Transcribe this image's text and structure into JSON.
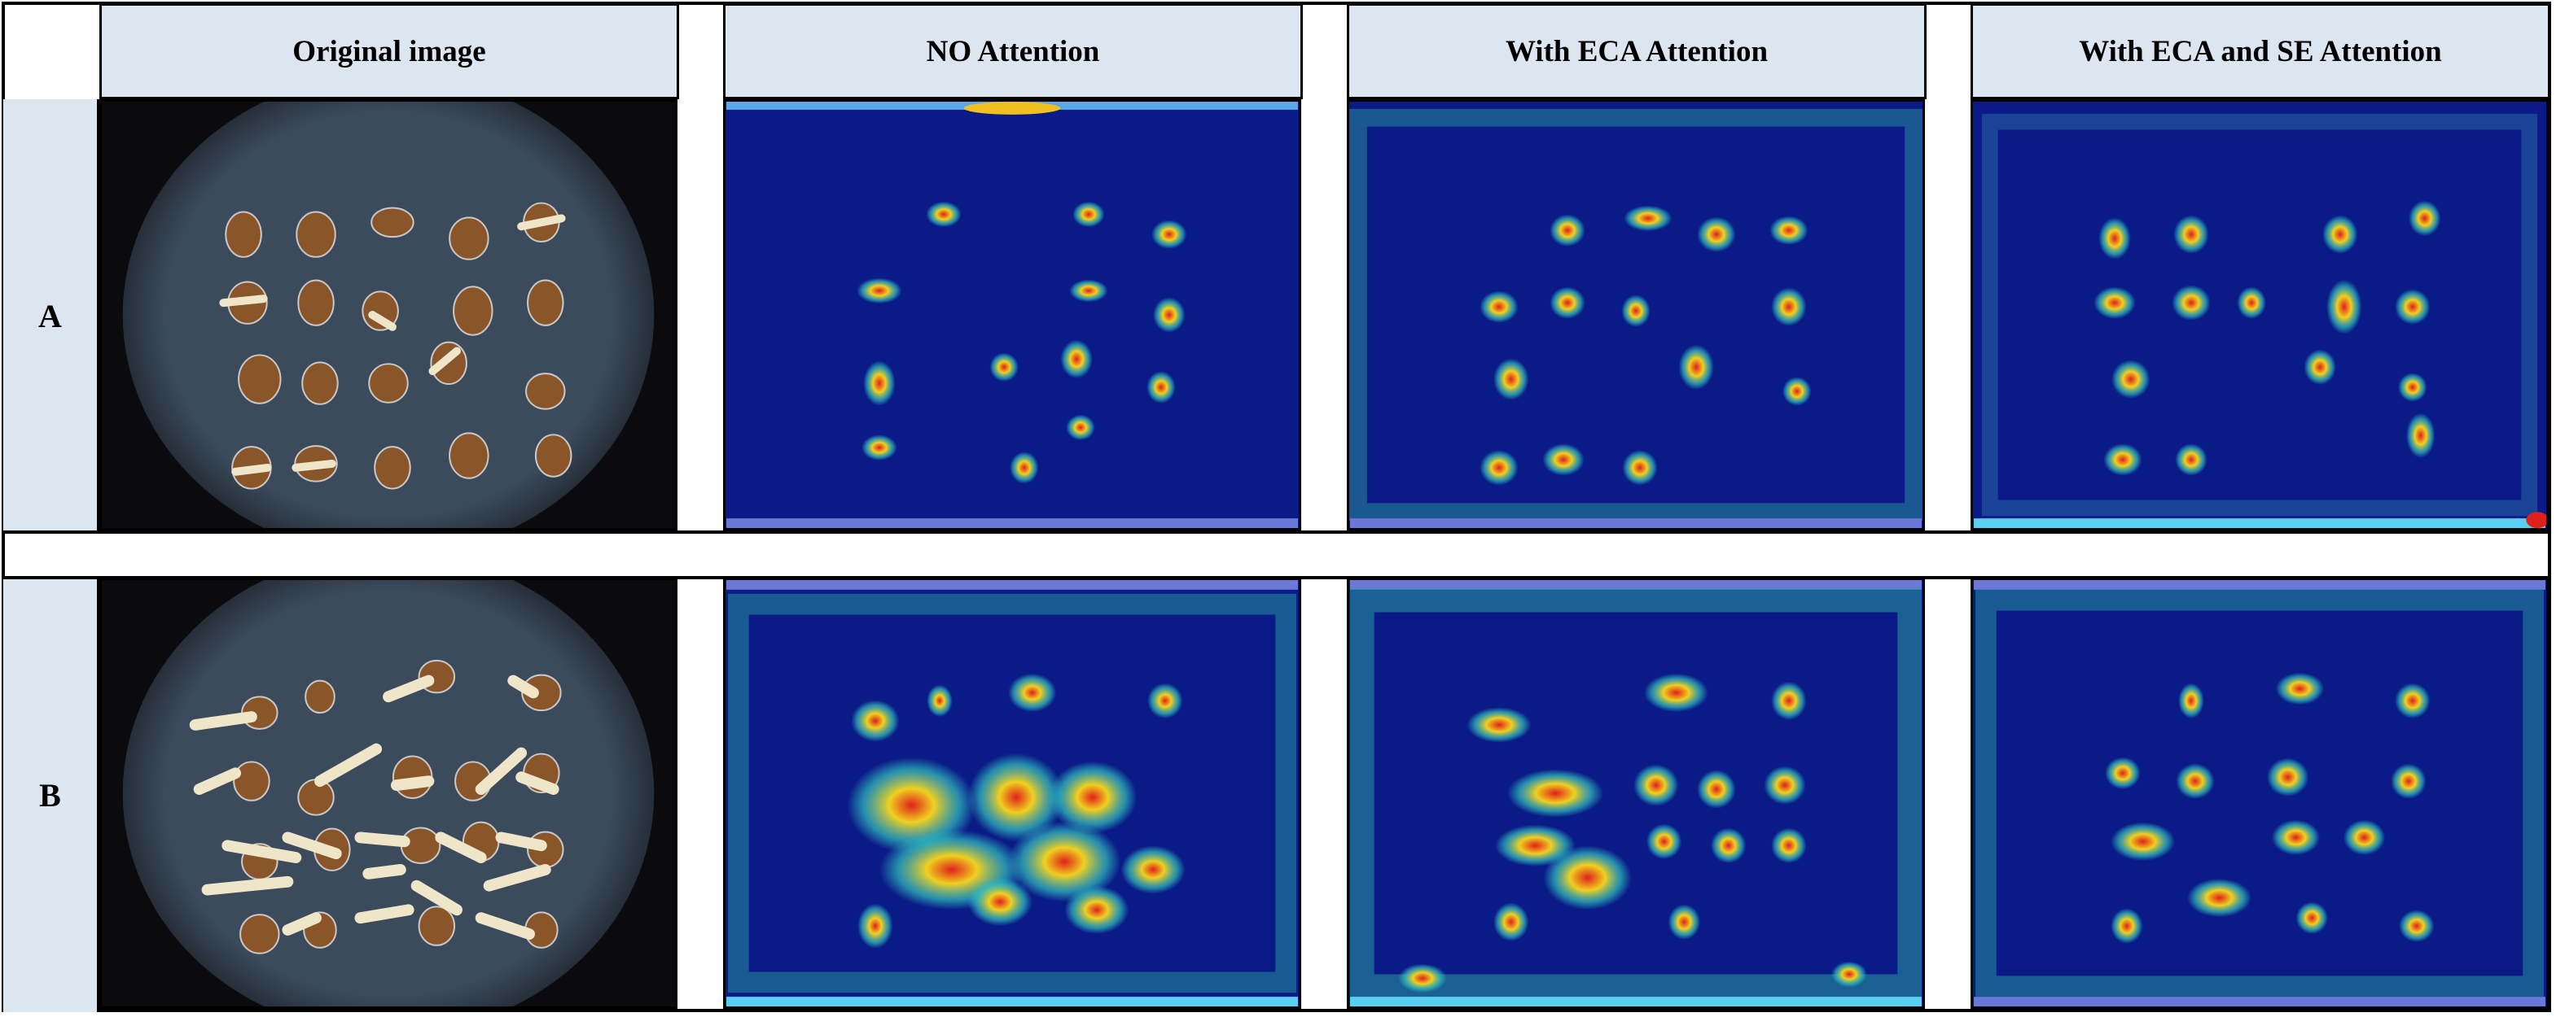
{
  "columns": {
    "original": "Original image",
    "no_attention": "NO Attention",
    "eca": "With ECA Attention",
    "eca_se": "With ECA and SE Attention"
  },
  "rows": {
    "a": "A",
    "b": "B"
  },
  "colors": {
    "header_bg": "#dce6f1",
    "cam_background": "#0a1a86",
    "seed_brown": "#8a5528",
    "sprout": "#efe6c9"
  }
}
